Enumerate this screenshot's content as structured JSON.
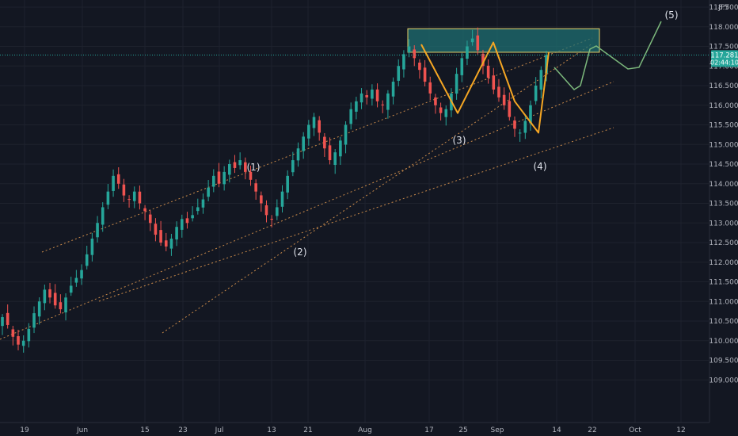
{
  "currency": "JPY",
  "price_badge": {
    "price": "117.281",
    "countdown": "02:44:10",
    "color": "#26a69a"
  },
  "colors": {
    "background": "#131722",
    "up_candle": "#26a69a",
    "down_candle": "#ef5350",
    "wave_projection": "#f5a623",
    "target_arrows": "#7cb87c",
    "resistance_zone_fill": "#1f6f72",
    "resistance_zone_border": "#e8d36a",
    "trendline": "#c98a4a",
    "grid": "#1e222d"
  },
  "chart_data": {
    "type": "candlestick",
    "symbol_currency": "JPY",
    "y_axis": {
      "ylim": [
        109.0,
        118.6
      ],
      "ticks": [
        "109.000",
        "109.500",
        "110.000",
        "110.500",
        "111.000",
        "111.500",
        "112.000",
        "112.500",
        "113.000",
        "113.500",
        "114.000",
        "114.500",
        "115.000",
        "115.500",
        "116.000",
        "116.500",
        "117.000",
        "117.500",
        "118.000",
        "118.500"
      ]
    },
    "x_axis": {
      "ticks": [
        "19",
        "Jun",
        "15",
        "23",
        "Jul",
        "13",
        "21",
        "Aug",
        "17",
        "25",
        "Sep",
        "14",
        "22",
        "Oct",
        "12"
      ]
    },
    "last_price": 117.281,
    "elliott_wave_labels": [
      {
        "label": "(1)",
        "price": 114.6
      },
      {
        "label": "(2)",
        "price": 113.1
      },
      {
        "label": "(3)",
        "price": 115.8
      },
      {
        "label": "(4)",
        "price": 115.2
      },
      {
        "label": "(5)",
        "price": 118.6
      }
    ],
    "resistance_zone": {
      "from": 117.35,
      "to": 117.95
    },
    "price_path_close": [
      110.6,
      110.4,
      110.1,
      109.9,
      110.0,
      110.3,
      110.7,
      111.0,
      111.3,
      111.1,
      110.9,
      110.8,
      111.1,
      111.4,
      111.6,
      111.8,
      112.2,
      112.6,
      113.0,
      113.4,
      113.8,
      114.2,
      114.0,
      113.7,
      113.6,
      113.8,
      113.5,
      113.3,
      113.0,
      112.7,
      112.5,
      112.4,
      112.6,
      112.9,
      113.1,
      113.0,
      113.2,
      113.4,
      113.6,
      113.9,
      114.2,
      114.0,
      114.3,
      114.5,
      114.4,
      114.6,
      114.3,
      114.1,
      113.8,
      113.5,
      113.2,
      113.1,
      113.4,
      113.8,
      114.2,
      114.6,
      114.9,
      115.2,
      115.5,
      115.7,
      115.3,
      114.9,
      114.6,
      114.8,
      115.1,
      115.5,
      115.9,
      116.1,
      116.3,
      116.2,
      116.4,
      116.1,
      116.0,
      116.3,
      116.6,
      117.0,
      117.3,
      117.5,
      117.2,
      116.9,
      116.6,
      116.3,
      116.0,
      115.8,
      115.9,
      116.3,
      116.8,
      117.2,
      117.5,
      117.7,
      117.4,
      117.0,
      116.7,
      116.4,
      116.2,
      116.0,
      115.7,
      115.4,
      115.3,
      115.6,
      116.0,
      116.5,
      116.9,
      117.281
    ],
    "projections": {
      "wave_path": [
        117.55,
        115.8,
        117.6,
        116.1,
        115.3,
        117.35
      ],
      "target_path": [
        117.35,
        116.8,
        117.85,
        117.0,
        118.6
      ]
    }
  }
}
